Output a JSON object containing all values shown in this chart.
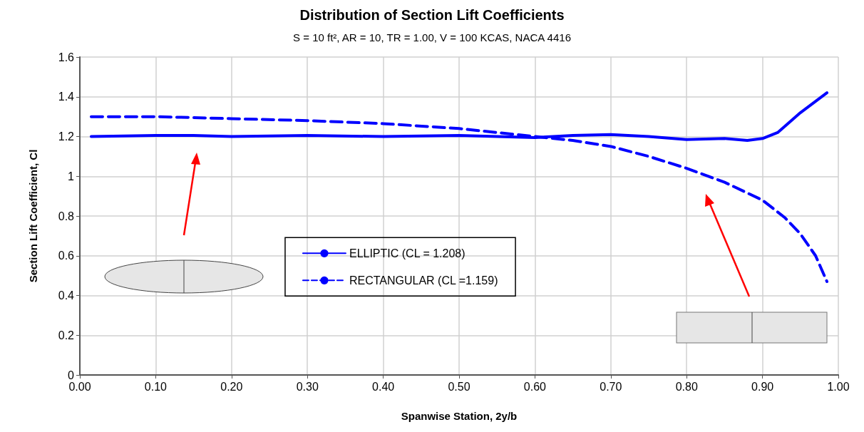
{
  "chart_data": {
    "type": "line",
    "title": "Distribution of Section Lift Coefficients",
    "subtitle": "S = 10 ft², AR = 10, TR = 1.00, V = 100 KCAS, NACA 4416",
    "xlabel": "Spanwise Station, 2y/b",
    "ylabel": "Section Lift Coefficient, Cl",
    "xlim": [
      0,
      1
    ],
    "xticks": [
      {
        "value": 0,
        "label": "0.00"
      },
      {
        "value": 0.1,
        "label": "0.10"
      },
      {
        "value": 0.2,
        "label": "0.20"
      },
      {
        "value": 0.3,
        "label": "0.30"
      },
      {
        "value": 0.4,
        "label": "0.40"
      },
      {
        "value": 0.5,
        "label": "0.50"
      },
      {
        "value": 0.6,
        "label": "0.60"
      },
      {
        "value": 0.7,
        "label": "0.70"
      },
      {
        "value": 0.8,
        "label": "0.80"
      },
      {
        "value": 0.9,
        "label": "0.90"
      },
      {
        "value": 1,
        "label": "1.00"
      }
    ],
    "ylim": [
      0,
      1.6
    ],
    "yticks": [
      0,
      0.2,
      0.4,
      0.6,
      0.8,
      1,
      1.2,
      1.4,
      1.6
    ],
    "grid": true,
    "legend": "center",
    "marker": "none",
    "series": [
      {
        "name": "ELLIPTIC (CL = 1.208)",
        "color": "#0000ff",
        "line_style": "solid",
        "x": [
          0.015,
          0.1,
          0.15,
          0.2,
          0.3,
          0.4,
          0.5,
          0.6,
          0.65,
          0.7,
          0.75,
          0.8,
          0.85,
          0.88,
          0.9,
          0.92,
          0.95,
          0.985
        ],
        "values": [
          1.2,
          1.205,
          1.205,
          1.2,
          1.205,
          1.2,
          1.205,
          1.195,
          1.205,
          1.21,
          1.2,
          1.185,
          1.19,
          1.18,
          1.19,
          1.22,
          1.32,
          1.42
        ]
      },
      {
        "name": "RECTANGULAR (CL =1.159)",
        "color": "#0000ff",
        "line_style": "dashed",
        "x": [
          0.015,
          0.1,
          0.2,
          0.3,
          0.4,
          0.5,
          0.6,
          0.65,
          0.7,
          0.75,
          0.8,
          0.85,
          0.9,
          0.93,
          0.95,
          0.97,
          0.985
        ],
        "values": [
          1.3,
          1.3,
          1.29,
          1.28,
          1.265,
          1.24,
          1.2,
          1.18,
          1.15,
          1.1,
          1.04,
          0.97,
          0.88,
          0.79,
          0.71,
          0.6,
          0.47
        ]
      }
    ]
  }
}
